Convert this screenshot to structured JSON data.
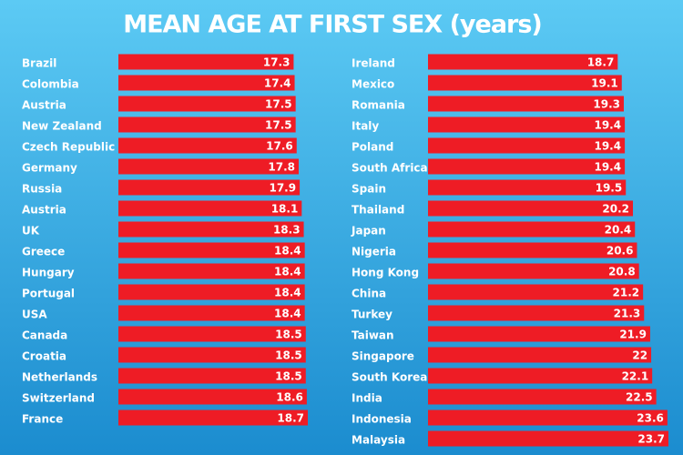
{
  "title": "MEAN AGE AT FIRST SEX (years)",
  "chart_data": [
    {
      "type": "bar",
      "color": "#ee1c25",
      "categories": [
        "Brazil",
        "Colombia",
        "Austria",
        "New Zealand",
        "Czech Republic",
        "Germany",
        "Russia",
        "Austria",
        "UK",
        "Greece",
        "Hungary",
        "Portugal",
        "USA",
        "Canada",
        "Croatia",
        "Netherlands",
        "Switzerland",
        "France"
      ],
      "values": [
        17.3,
        17.4,
        17.5,
        17.5,
        17.6,
        17.8,
        17.9,
        18.1,
        18.3,
        18.4,
        18.4,
        18.4,
        18.4,
        18.5,
        18.5,
        18.5,
        18.6,
        18.7
      ]
    },
    {
      "type": "bar",
      "color": "#ee1c25",
      "categories": [
        "Ireland",
        "Mexico",
        "Romania",
        "Italy",
        "Poland",
        "South Africa",
        "Spain",
        "Thailand",
        "Japan",
        "Nigeria",
        "Hong Kong",
        "China",
        "Turkey",
        "Taiwan",
        "Singapore",
        "South Korea",
        "India",
        "Indonesia",
        "Malaysia"
      ],
      "values": [
        18.7,
        19.1,
        19.3,
        19.4,
        19.4,
        19.4,
        19.5,
        20.2,
        20.4,
        20.6,
        20.8,
        21.2,
        21.3,
        21.9,
        22,
        22.1,
        22.5,
        23.6,
        23.7
      ]
    }
  ]
}
